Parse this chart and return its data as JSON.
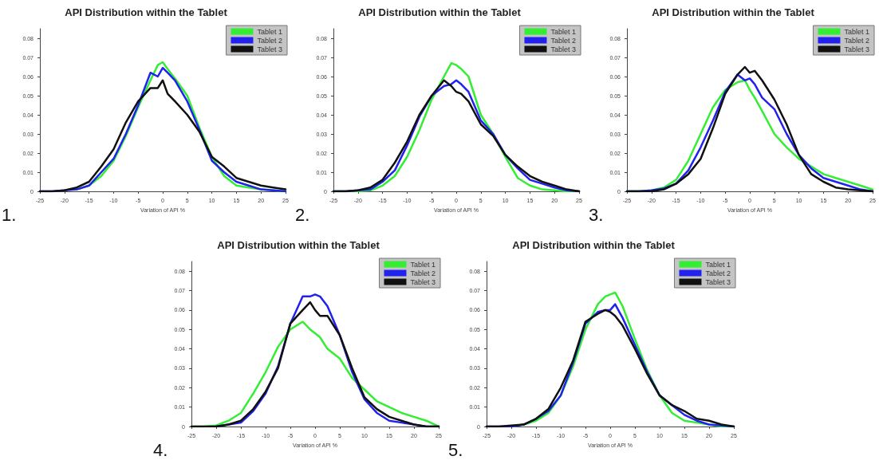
{
  "chart_data": [
    {
      "type": "line",
      "title": "API Distribution within the Tablet",
      "xlabel": "Variation of API %",
      "annotations": [
        "1."
      ],
      "legend": "top right",
      "grid": false,
      "marker": "none",
      "xlim": [
        -25,
        25
      ],
      "xticks": [
        -25,
        -20,
        -15,
        -10,
        -5,
        0,
        5,
        10,
        15,
        20,
        25
      ],
      "ylim": [
        0,
        0.085
      ],
      "yticks": [
        0,
        0.01,
        0.02,
        0.03,
        0.04,
        0.05,
        0.06,
        0.07,
        0.08
      ],
      "x": [
        -25,
        -22.5,
        -20,
        -17.5,
        -15,
        -12.5,
        -10,
        -7.5,
        -5,
        -2.5,
        -1,
        0,
        1,
        2.5,
        5,
        7.5,
        10,
        12.5,
        15,
        17.5,
        20,
        22.5,
        25
      ],
      "series": [
        {
          "name": "Tablet 1",
          "color": "#33ee33",
          "values": [
            null,
            null,
            null,
            0.001,
            0.003,
            0.008,
            0.016,
            0.029,
            0.044,
            0.058,
            0.066,
            0.0675,
            0.064,
            0.059,
            0.05,
            0.033,
            0.018,
            0.008,
            0.003,
            0.002,
            0.001,
            0.0005,
            0
          ]
        },
        {
          "name": "Tablet 2",
          "color": "#2222ee",
          "values": [
            0,
            0,
            0.0005,
            0.001,
            0.003,
            0.01,
            0.017,
            0.03,
            0.045,
            0.062,
            0.06,
            0.0645,
            0.062,
            0.058,
            0.047,
            0.032,
            0.016,
            0.01,
            0.005,
            0.003,
            0.001,
            0.0005,
            0
          ]
        },
        {
          "name": "Tablet 3",
          "color": "#111111",
          "values": [
            0,
            0,
            0.0005,
            0.002,
            0.005,
            0.013,
            0.022,
            0.036,
            0.047,
            0.054,
            0.054,
            0.058,
            0.051,
            0.047,
            0.04,
            0.031,
            0.018,
            0.013,
            0.007,
            0.005,
            0.003,
            0.002,
            0.001
          ]
        }
      ]
    },
    {
      "type": "line",
      "title": "API Distribution within the Tablet",
      "xlabel": "Variation of API %",
      "annotations": [
        "2."
      ],
      "legend": "top right",
      "grid": false,
      "marker": "none",
      "xlim": [
        -25,
        25
      ],
      "xticks": [
        -25,
        -20,
        -15,
        -10,
        -5,
        0,
        5,
        10,
        15,
        20,
        25
      ],
      "ylim": [
        0,
        0.085
      ],
      "yticks": [
        0,
        0.01,
        0.02,
        0.03,
        0.04,
        0.05,
        0.06,
        0.07,
        0.08
      ],
      "x": [
        -25,
        -22.5,
        -20,
        -17.5,
        -15,
        -12.5,
        -10,
        -7.5,
        -5,
        -2.5,
        -1,
        0,
        1,
        2.5,
        5,
        7.5,
        10,
        12.5,
        15,
        17.5,
        20,
        22.5,
        25
      ],
      "series": [
        {
          "name": "Tablet 1",
          "color": "#33ee33",
          "values": [
            0,
            0,
            0,
            0.0005,
            0.003,
            0.008,
            0.018,
            0.032,
            0.048,
            0.06,
            0.067,
            0.066,
            0.064,
            0.06,
            0.04,
            0.03,
            0.018,
            0.007,
            0.003,
            0.001,
            0.0005,
            0,
            0
          ]
        },
        {
          "name": "Tablet 2",
          "color": "#2222ee",
          "values": [
            0,
            0,
            0.0005,
            0.001,
            0.005,
            0.011,
            0.024,
            0.039,
            0.05,
            0.055,
            0.056,
            0.058,
            0.056,
            0.052,
            0.037,
            0.03,
            0.019,
            0.012,
            0.006,
            0.004,
            0.002,
            0.0005,
            0
          ]
        },
        {
          "name": "Tablet 3",
          "color": "#111111",
          "values": [
            0,
            0,
            0.0005,
            0.002,
            0.006,
            0.015,
            0.026,
            0.04,
            0.05,
            0.058,
            0.055,
            0.052,
            0.051,
            0.047,
            0.035,
            0.029,
            0.019,
            0.013,
            0.008,
            0.005,
            0.003,
            0.001,
            0
          ]
        }
      ]
    },
    {
      "type": "line",
      "title": "API Distribution within the Tablet",
      "xlabel": "Variation of API %",
      "annotations": [
        "3."
      ],
      "legend": "top right",
      "grid": false,
      "marker": "none",
      "xlim": [
        -25,
        25
      ],
      "xticks": [
        -25,
        -20,
        -15,
        -10,
        -5,
        0,
        5,
        10,
        15,
        20,
        25
      ],
      "ylim": [
        0,
        0.085
      ],
      "yticks": [
        0,
        0.01,
        0.02,
        0.03,
        0.04,
        0.05,
        0.06,
        0.07,
        0.08
      ],
      "x": [
        -25,
        -22.5,
        -20,
        -17.5,
        -15,
        -12.5,
        -10,
        -7.5,
        -5,
        -2.5,
        -1,
        0,
        1,
        2.5,
        5,
        7.5,
        10,
        12.5,
        15,
        17.5,
        20,
        22.5,
        25
      ],
      "series": [
        {
          "name": "Tablet 1",
          "color": "#33ee33",
          "values": [
            0,
            0,
            0.0005,
            0.002,
            0.006,
            0.016,
            0.03,
            0.044,
            0.053,
            0.057,
            0.058,
            0.053,
            0.049,
            0.042,
            0.03,
            0.023,
            0.017,
            0.013,
            0.009,
            0.007,
            0.005,
            0.003,
            0.001
          ]
        },
        {
          "name": "Tablet 2",
          "color": "#2222ee",
          "values": [
            0,
            0,
            0.0005,
            0.0015,
            0.004,
            0.011,
            0.023,
            0.037,
            0.052,
            0.061,
            0.058,
            0.059,
            0.056,
            0.049,
            0.043,
            0.03,
            0.019,
            0.012,
            0.007,
            0.005,
            0.003,
            0.001,
            0
          ]
        },
        {
          "name": "Tablet 3",
          "color": "#111111",
          "values": [
            0,
            0,
            0,
            0.001,
            0.004,
            0.009,
            0.017,
            0.033,
            0.051,
            0.061,
            0.065,
            0.062,
            0.063,
            0.058,
            0.048,
            0.035,
            0.019,
            0.009,
            0.005,
            0.002,
            0.001,
            0.0005,
            0
          ]
        }
      ]
    },
    {
      "type": "line",
      "title": "API Distribution within the Tablet",
      "xlabel": "Variation of API %",
      "annotations": [
        "4."
      ],
      "legend": "top right",
      "grid": false,
      "marker": "none",
      "xlim": [
        -25,
        25
      ],
      "xticks": [
        -25,
        -20,
        -15,
        -10,
        -5,
        0,
        5,
        10,
        15,
        20,
        25
      ],
      "ylim": [
        0,
        0.085
      ],
      "yticks": [
        0,
        0.01,
        0.02,
        0.03,
        0.04,
        0.05,
        0.06,
        0.07,
        0.08
      ],
      "x": [
        -25,
        -22.5,
        -20,
        -17.5,
        -15,
        -12.5,
        -10,
        -7.5,
        -5,
        -2.5,
        -1,
        0,
        1,
        2.5,
        5,
        7.5,
        10,
        12.5,
        15,
        17.5,
        20,
        22.5,
        25
      ],
      "series": [
        {
          "name": "Tablet 1",
          "color": "#33ee33",
          "values": [
            0,
            0,
            0.0005,
            0.003,
            0.007,
            0.017,
            0.028,
            0.041,
            0.05,
            0.054,
            0.05,
            0.048,
            0.046,
            0.04,
            0.035,
            0.025,
            0.019,
            0.013,
            0.01,
            0.007,
            0.005,
            0.003,
            0
          ]
        },
        {
          "name": "Tablet 2",
          "color": "#2222ee",
          "values": [
            null,
            null,
            0,
            0.001,
            0.002,
            0.008,
            0.017,
            0.031,
            0.053,
            0.067,
            0.067,
            0.068,
            0.067,
            0.062,
            0.047,
            0.028,
            0.014,
            0.007,
            0.003,
            0.002,
            0.001,
            0,
            0
          ]
        },
        {
          "name": "Tablet 3",
          "color": "#111111",
          "values": [
            0,
            0,
            0,
            0.001,
            0.003,
            0.009,
            0.018,
            0.03,
            0.053,
            0.06,
            0.064,
            0.06,
            0.057,
            0.057,
            0.047,
            0.03,
            0.015,
            0.009,
            0.005,
            0.003,
            0.001,
            0,
            0
          ]
        }
      ]
    },
    {
      "type": "line",
      "title": "API Distribution within the Tablet",
      "xlabel": "Variation of API %",
      "annotations": [
        "5."
      ],
      "legend": "top right",
      "grid": false,
      "marker": "none",
      "xlim": [
        -25,
        25
      ],
      "xticks": [
        -25,
        -20,
        -15,
        -10,
        -5,
        0,
        5,
        10,
        15,
        20,
        25
      ],
      "ylim": [
        0,
        0.085
      ],
      "yticks": [
        0,
        0.01,
        0.02,
        0.03,
        0.04,
        0.05,
        0.06,
        0.07,
        0.08
      ],
      "x": [
        -25,
        -22.5,
        -20,
        -17.5,
        -15,
        -12.5,
        -10,
        -7.5,
        -5,
        -2.5,
        -1,
        0,
        1,
        2.5,
        5,
        7.5,
        10,
        12.5,
        15,
        17.5,
        20,
        22.5,
        25
      ],
      "series": [
        {
          "name": "Tablet 1",
          "color": "#33ee33",
          "values": [
            null,
            null,
            0,
            0.001,
            0.003,
            0.007,
            0.016,
            0.031,
            0.05,
            0.063,
            0.067,
            0.068,
            0.069,
            0.062,
            0.045,
            0.029,
            0.016,
            0.007,
            0.003,
            0.002,
            0.001,
            0,
            0
          ]
        },
        {
          "name": "Tablet 2",
          "color": "#2222ee",
          "values": [
            0,
            0,
            0,
            0.001,
            0.004,
            0.008,
            0.016,
            0.033,
            0.053,
            0.059,
            0.06,
            0.06,
            0.063,
            0.056,
            0.042,
            0.028,
            0.016,
            0.011,
            0.006,
            0.003,
            0.001,
            0.0005,
            0
          ]
        },
        {
          "name": "Tablet 3",
          "color": "#111111",
          "values": [
            0,
            0,
            0.0005,
            0.001,
            0.004,
            0.009,
            0.02,
            0.034,
            0.054,
            0.058,
            0.06,
            0.059,
            0.057,
            0.052,
            0.04,
            0.027,
            0.016,
            0.011,
            0.008,
            0.004,
            0.003,
            0.001,
            0
          ]
        }
      ]
    }
  ]
}
